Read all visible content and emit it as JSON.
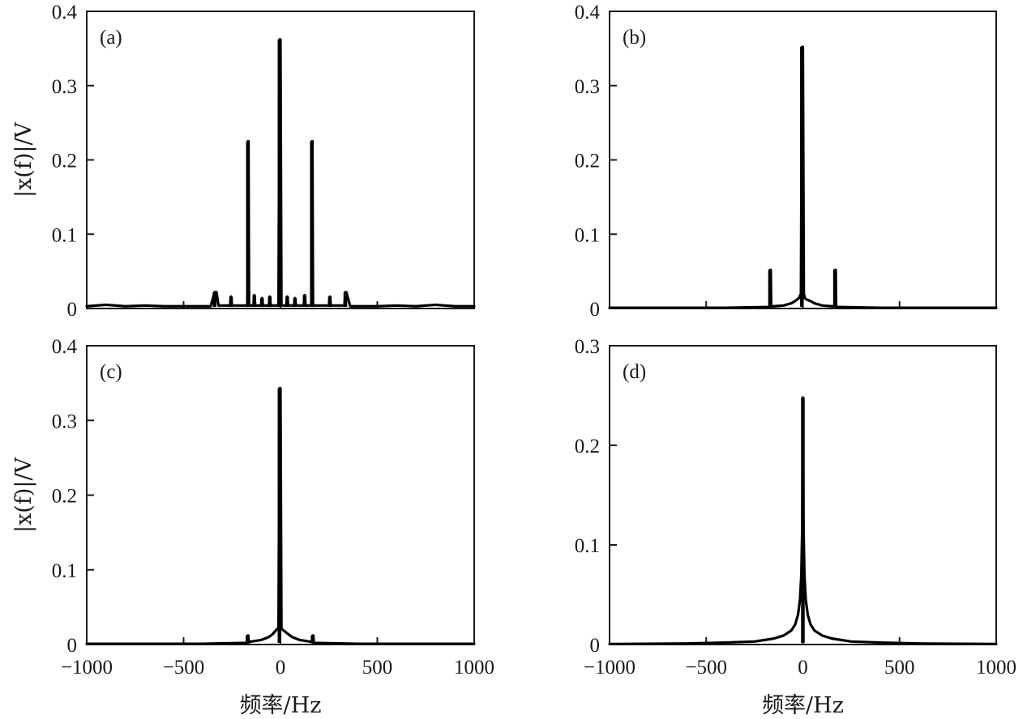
{
  "chart_data": [
    {
      "type": "line",
      "panel_label": "(a)",
      "xlabel": "",
      "ylabel": "|x(f)|/V",
      "xlim": [
        -1000,
        1000
      ],
      "ylim": [
        0,
        0.4
      ],
      "xticks": [
        -1000,
        -500,
        0,
        500,
        1000
      ],
      "xtick_labels": [
        "",
        "",
        "",
        "",
        ""
      ],
      "yticks": [
        0,
        0.1,
        0.2,
        0.3,
        0.4
      ],
      "ytick_labels": [
        "0",
        "0.1",
        "0.2",
        "0.3",
        "0.4"
      ],
      "grid": false,
      "series": [
        {
          "x": [
            -1000,
            -900,
            -800,
            -700,
            -600,
            -500,
            -400,
            -360,
            -340,
            -330,
            -320,
            -300,
            -260,
            -255,
            -250,
            -240,
            -200,
            -170,
            -168,
            -165,
            -162,
            -160,
            -140,
            -135,
            -130,
            -100,
            -95,
            -90,
            -60,
            -55,
            -50,
            -10,
            -5,
            0,
            5,
            10,
            30,
            35,
            40,
            70,
            75,
            80,
            120,
            125,
            130,
            160,
            162,
            165,
            168,
            170,
            200,
            250,
            255,
            260,
            300,
            330,
            335,
            340,
            360,
            400,
            500,
            600,
            700,
            800,
            900,
            1000
          ],
          "y": [
            0.003,
            0.005,
            0.003,
            0.004,
            0.003,
            0.003,
            0.003,
            0.003,
            0.022,
            0.022,
            0.004,
            0.004,
            0.004,
            0.016,
            0.004,
            0.004,
            0.004,
            0.004,
            0.225,
            0.225,
            0.004,
            0.004,
            0.004,
            0.018,
            0.004,
            0.004,
            0.014,
            0.004,
            0.004,
            0.016,
            0.004,
            0.004,
            0.362,
            0.362,
            0.004,
            0.004,
            0.004,
            0.016,
            0.004,
            0.004,
            0.014,
            0.004,
            0.004,
            0.018,
            0.004,
            0.004,
            0.225,
            0.225,
            0.004,
            0.004,
            0.004,
            0.004,
            0.016,
            0.004,
            0.004,
            0.004,
            0.022,
            0.022,
            0.003,
            0.003,
            0.003,
            0.004,
            0.003,
            0.005,
            0.003,
            0.003
          ]
        }
      ]
    },
    {
      "type": "line",
      "panel_label": "(b)",
      "xlabel": "",
      "ylabel": "",
      "xlim": [
        -1000,
        1000
      ],
      "ylim": [
        0,
        0.4
      ],
      "xticks": [
        -1000,
        -500,
        0,
        500,
        1000
      ],
      "xtick_labels": [
        "",
        "",
        "",
        "",
        ""
      ],
      "yticks": [
        0,
        0.1,
        0.2,
        0.3,
        0.4
      ],
      "ytick_labels": [
        "0",
        "0.1",
        "0.2",
        "0.3",
        "0.4"
      ],
      "grid": false,
      "series": [
        {
          "x": [
            -1000,
            -400,
            -200,
            -172,
            -170,
            -166,
            -164,
            -150,
            -100,
            -60,
            -40,
            -20,
            -10,
            -5,
            0,
            5,
            10,
            20,
            40,
            60,
            100,
            150,
            164,
            166,
            170,
            172,
            200,
            400,
            1000
          ],
          "y": [
            0.001,
            0.001,
            0.002,
            0.002,
            0.052,
            0.052,
            0.003,
            0.003,
            0.004,
            0.007,
            0.01,
            0.014,
            0.02,
            0.352,
            0.352,
            0.02,
            0.014,
            0.012,
            0.01,
            0.007,
            0.004,
            0.003,
            0.003,
            0.052,
            0.052,
            0.002,
            0.002,
            0.001,
            0.001
          ]
        }
      ]
    },
    {
      "type": "line",
      "panel_label": "(c)",
      "xlabel": "频率/Hz",
      "ylabel": "|x(f)|/V",
      "xlim": [
        -1000,
        1000
      ],
      "ylim": [
        0,
        0.4
      ],
      "xticks": [
        -1000,
        -500,
        0,
        500,
        1000
      ],
      "xtick_labels": [
        "−1000",
        "−500",
        "0",
        "500",
        "1000"
      ],
      "yticks": [
        0,
        0.1,
        0.2,
        0.3,
        0.4
      ],
      "ytick_labels": [
        "0",
        "0.1",
        "0.2",
        "0.3",
        "0.4"
      ],
      "grid": false,
      "series": [
        {
          "x": [
            -1000,
            -400,
            -200,
            -172,
            -170,
            -166,
            -164,
            -150,
            -100,
            -60,
            -40,
            -20,
            -10,
            -5,
            0,
            5,
            10,
            20,
            40,
            60,
            100,
            150,
            164,
            166,
            170,
            172,
            200,
            400,
            1000
          ],
          "y": [
            0.001,
            0.001,
            0.002,
            0.002,
            0.012,
            0.012,
            0.003,
            0.004,
            0.006,
            0.01,
            0.014,
            0.02,
            0.022,
            0.343,
            0.343,
            0.022,
            0.02,
            0.018,
            0.014,
            0.01,
            0.006,
            0.004,
            0.003,
            0.012,
            0.012,
            0.002,
            0.002,
            0.001,
            0.001
          ]
        }
      ]
    },
    {
      "type": "line",
      "panel_label": "(d)",
      "xlabel": "频率/Hz",
      "ylabel": "",
      "xlim": [
        -1000,
        1000
      ],
      "ylim": [
        0,
        0.3
      ],
      "xticks": [
        -1000,
        -500,
        0,
        500,
        1000
      ],
      "xtick_labels": [
        "−1000",
        "−500",
        "0",
        "500",
        "1000"
      ],
      "yticks": [
        0,
        0.1,
        0.2,
        0.3
      ],
      "ytick_labels": [
        "0",
        "0.1",
        "0.2",
        "0.3"
      ],
      "grid": false,
      "series": [
        {
          "x": [
            -1000,
            -600,
            -400,
            -250,
            -150,
            -100,
            -60,
            -40,
            -25,
            -15,
            -8,
            -3,
            0,
            3,
            8,
            15,
            25,
            40,
            60,
            100,
            150,
            250,
            400,
            600,
            1000
          ],
          "y": [
            0.0005,
            0.001,
            0.002,
            0.003,
            0.006,
            0.009,
            0.014,
            0.02,
            0.03,
            0.045,
            0.07,
            0.12,
            0.248,
            0.12,
            0.07,
            0.045,
            0.03,
            0.02,
            0.014,
            0.009,
            0.006,
            0.003,
            0.002,
            0.001,
            0.0005
          ]
        }
      ]
    }
  ]
}
